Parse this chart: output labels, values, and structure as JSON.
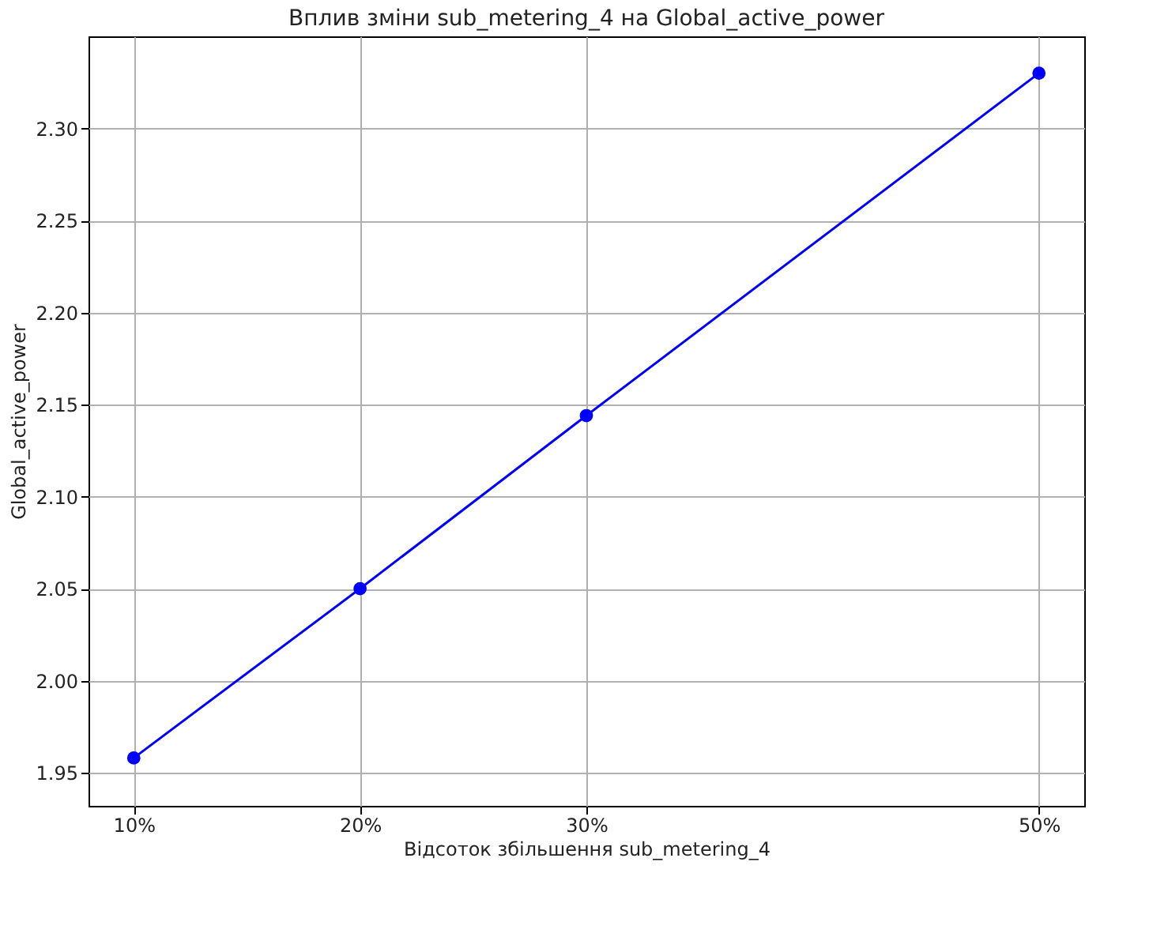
{
  "chart_data": {
    "type": "line",
    "title": "Вплив зміни sub_metering_4 на Global_active_power",
    "xlabel": "Відсоток збільшення sub_metering_4",
    "ylabel": "Global_active_power",
    "x": [
      10,
      20,
      30,
      50
    ],
    "series": [
      {
        "color": "#0000ff",
        "values": [
          1.958,
          2.05,
          2.144,
          2.33
        ]
      }
    ],
    "xlim": [
      8,
      52
    ],
    "xticks": [
      {
        "value": 10,
        "label": "10%"
      },
      {
        "value": 20,
        "label": "20%"
      },
      {
        "value": 30,
        "label": "30%"
      },
      {
        "value": 50,
        "label": "50%"
      }
    ],
    "ylim": [
      1.932,
      2.35
    ],
    "yticks": [
      {
        "value": 1.95,
        "label": "1.95"
      },
      {
        "value": 2.0,
        "label": "2.00"
      },
      {
        "value": 2.05,
        "label": "2.05"
      },
      {
        "value": 2.1,
        "label": "2.10"
      },
      {
        "value": 2.15,
        "label": "2.15"
      },
      {
        "value": 2.2,
        "label": "2.20"
      },
      {
        "value": 2.25,
        "label": "2.25"
      },
      {
        "value": 2.3,
        "label": "2.30"
      }
    ],
    "grid": true,
    "marker": "circle",
    "line_style": "solid"
  }
}
